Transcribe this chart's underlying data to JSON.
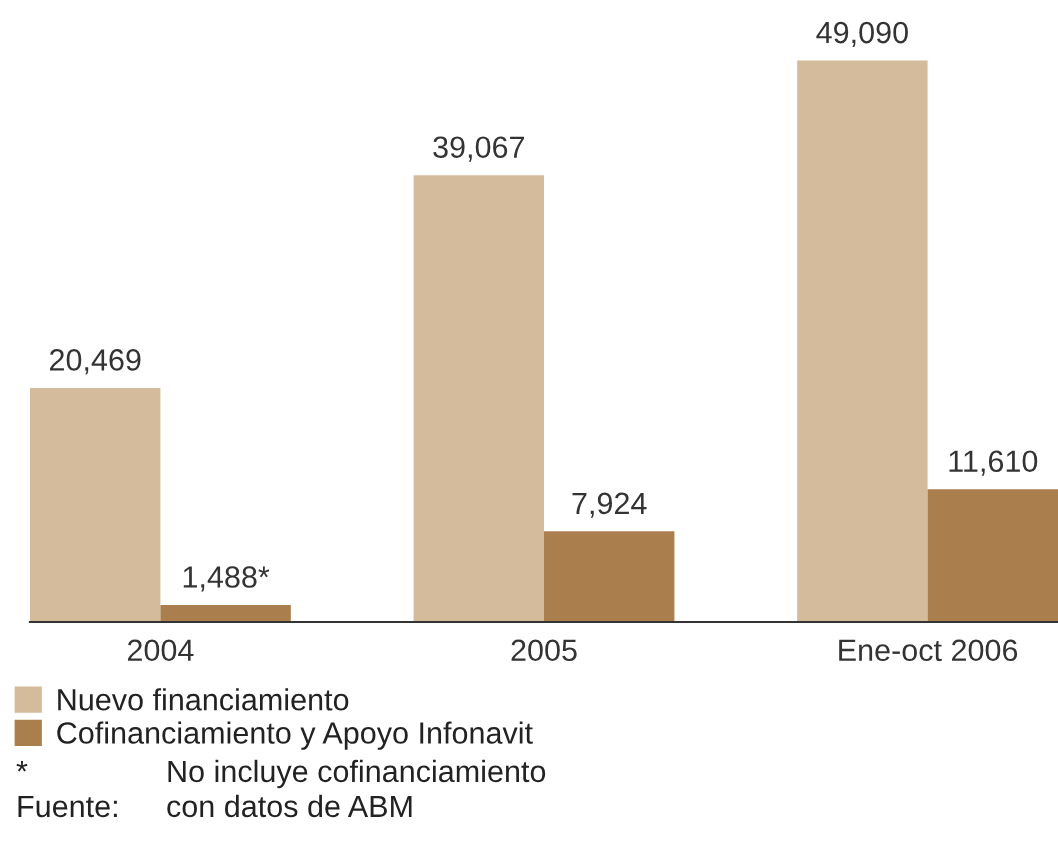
{
  "chart_data": {
    "type": "bar",
    "categories": [
      "2004",
      "2005",
      "Ene-oct 2006"
    ],
    "series": [
      {
        "name": "Nuevo financiamiento",
        "color": "#d3bb9b",
        "values": [
          20469,
          39067,
          49090
        ],
        "value_labels": [
          "20,469",
          "39,067",
          "49,090"
        ]
      },
      {
        "name": "Cofinanciamiento y Apoyo Infonavit",
        "color": "#aa7f4d",
        "values": [
          1488,
          7924,
          11610
        ],
        "value_labels": [
          "1,488*",
          "7,924",
          "11,610"
        ]
      }
    ],
    "legend": "bottom",
    "grid": false,
    "annotations": [
      "*\tNo incluye cofinanciamiento",
      "Fuente:\tcon datos de ABM"
    ]
  }
}
